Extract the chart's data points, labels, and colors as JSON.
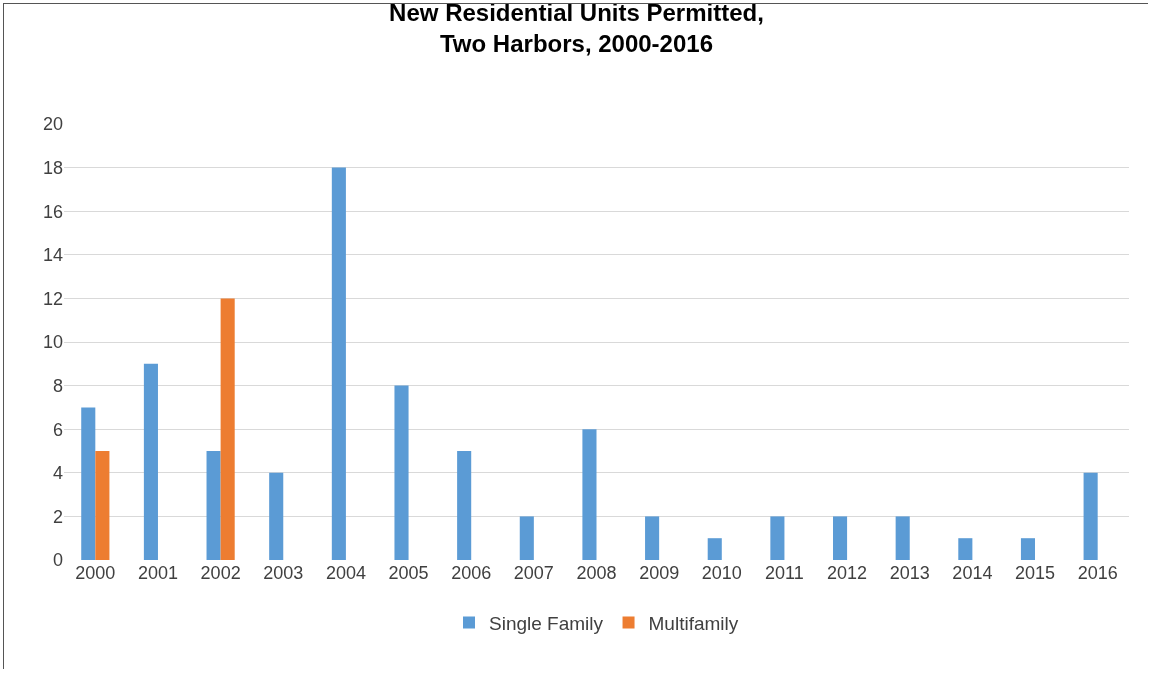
{
  "chart_data": {
    "type": "bar",
    "title": "New Residential Units Permitted,\nTwo Harbors, 2000-2016",
    "categories": [
      "2000",
      "2001",
      "2002",
      "2003",
      "2004",
      "2005",
      "2006",
      "2007",
      "2008",
      "2009",
      "2010",
      "2011",
      "2012",
      "2013",
      "2014",
      "2015",
      "2016"
    ],
    "series": [
      {
        "name": "Single Family",
        "color": "#5b9bd5",
        "values": [
          7,
          9,
          5,
          4,
          18,
          8,
          5,
          2,
          6,
          2,
          1,
          2,
          2,
          2,
          1,
          1,
          4
        ]
      },
      {
        "name": "Multifamily",
        "color": "#ed7d31",
        "values": [
          5,
          0,
          12,
          0,
          0,
          0,
          0,
          0,
          0,
          0,
          0,
          0,
          0,
          0,
          0,
          0,
          0
        ]
      }
    ],
    "ylim": [
      0,
      20
    ],
    "yticks": [
      0,
      2,
      4,
      6,
      8,
      10,
      12,
      14,
      16,
      18,
      20
    ],
    "grid": "y",
    "legend": "bottom"
  }
}
